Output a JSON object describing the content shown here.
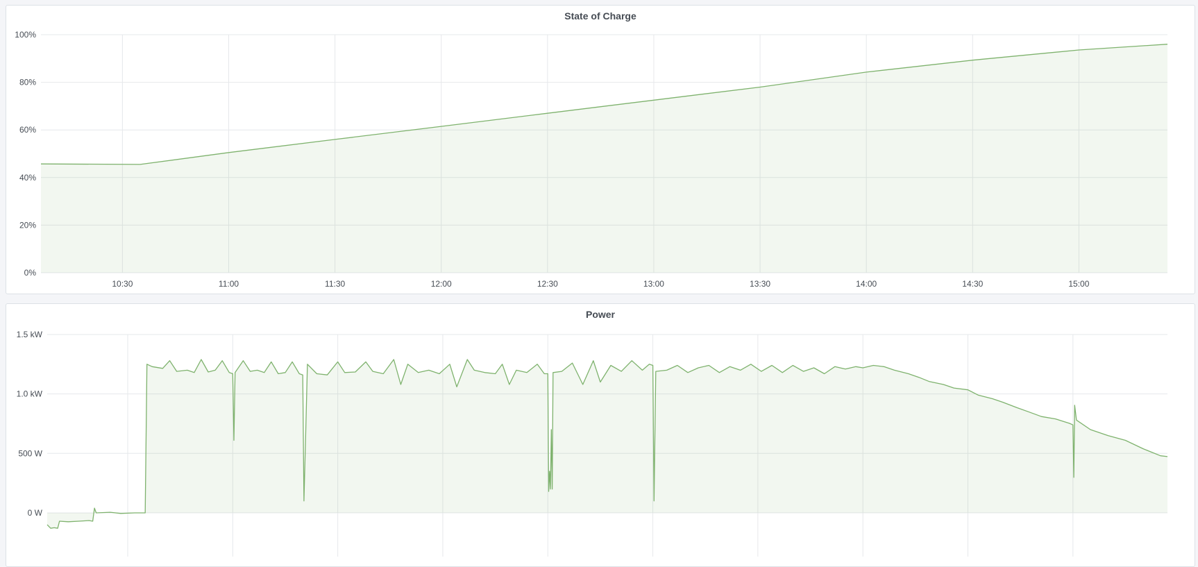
{
  "chart_data": [
    {
      "type": "area",
      "title": "State of Charge",
      "xlabel": "",
      "ylabel": "",
      "xlim": [
        "10:07",
        "15:25"
      ],
      "ylim": [
        0,
        100
      ],
      "y_ticks": [
        0,
        20,
        40,
        60,
        80,
        100
      ],
      "y_tick_labels": [
        "0%",
        "20%",
        "40%",
        "60%",
        "80%",
        "100%"
      ],
      "x_ticks": [
        "10:30",
        "11:00",
        "11:30",
        "12:00",
        "12:30",
        "13:00",
        "13:30",
        "14:00",
        "14:30",
        "15:00"
      ],
      "x_tick_labels": [
        "10:30",
        "11:00",
        "11:30",
        "12:00",
        "12:30",
        "13:00",
        "13:30",
        "14:00",
        "14:30",
        "15:00"
      ],
      "grid": true,
      "legend": "none",
      "color": "#7eb26d",
      "x": [
        "10:07",
        "10:35",
        "11:00",
        "11:30",
        "12:00",
        "12:30",
        "13:00",
        "13:30",
        "14:00",
        "14:30",
        "15:00",
        "15:25"
      ],
      "y": [
        45.7,
        45.5,
        50.5,
        56,
        61.5,
        67,
        72.5,
        78,
        84.3,
        89.3,
        93.6,
        96
      ]
    },
    {
      "type": "area",
      "title": "Power",
      "xlabel": "",
      "ylabel": "",
      "xlim": [
        "10:07",
        "15:27"
      ],
      "ylim": [
        -330,
        1500
      ],
      "y_ticks": [
        0,
        500,
        1000,
        1500
      ],
      "y_tick_labels": [
        "0 W",
        "500 W",
        "1.0 kW",
        "1.5 kW"
      ],
      "x_ticks": [
        "10:30",
        "11:00",
        "11:30",
        "12:00",
        "12:30",
        "13:00",
        "13:30",
        "14:00",
        "14:30",
        "15:00"
      ],
      "grid": true,
      "legend": "none",
      "color": "#7eb26d",
      "x": [
        "10:07",
        "10:08",
        "10:09",
        "10:10",
        "10:10:30",
        "10:13",
        "10:16",
        "10:19",
        "10:20",
        "10:20:30",
        "10:21",
        "10:25",
        "10:28",
        "10:32",
        "10:35",
        "10:35:30",
        "10:37",
        "10:40",
        "10:42",
        "10:44",
        "10:47",
        "10:49",
        "10:51",
        "10:53",
        "10:55",
        "10:57",
        "10:59",
        "11:00",
        "11:00:20",
        "11:00:40",
        "11:03",
        "11:05",
        "11:07",
        "11:09",
        "11:11",
        "11:13",
        "11:15",
        "11:17",
        "11:19",
        "11:20",
        "11:20:20",
        "11:20:50",
        "11:21:20",
        "11:24",
        "11:27",
        "11:30",
        "11:32",
        "11:35",
        "11:38",
        "11:40",
        "11:43",
        "11:46",
        "11:48",
        "11:50",
        "11:53",
        "11:56",
        "11:59",
        "12:02",
        "12:04",
        "12:07",
        "12:09",
        "12:12",
        "12:15",
        "12:17",
        "12:19",
        "12:21",
        "12:24",
        "12:27",
        "12:29",
        "12:30",
        "12:30:15",
        "12:30:30",
        "12:30:45",
        "12:31",
        "12:31:15",
        "12:31:30",
        "12:34",
        "12:37",
        "12:40",
        "12:43",
        "12:45",
        "12:48",
        "12:51",
        "12:54",
        "12:57",
        "12:59",
        "13:00",
        "13:00:20",
        "13:00:50",
        "13:04",
        "13:07",
        "13:10",
        "13:13",
        "13:16",
        "13:19",
        "13:22",
        "13:25",
        "13:28",
        "13:31",
        "13:34",
        "13:37",
        "13:40",
        "13:43",
        "13:46",
        "13:49",
        "13:52",
        "13:55",
        "13:58",
        "14:00",
        "14:03",
        "14:06",
        "14:09",
        "14:13",
        "14:16",
        "14:19",
        "14:23",
        "14:26",
        "14:30",
        "14:33",
        "14:37",
        "14:40",
        "14:44",
        "14:47",
        "14:51",
        "14:55",
        "14:59",
        "15:00",
        "15:00:15",
        "15:00:30",
        "15:01",
        "15:05",
        "15:10",
        "15:15",
        "15:20",
        "15:25",
        "15:27"
      ],
      "y": [
        -100,
        -130,
        -125,
        -130,
        -70,
        -75,
        -70,
        -65,
        -70,
        40,
        0,
        5,
        -5,
        0,
        0,
        1250,
        1230,
        1215,
        1280,
        1190,
        1200,
        1180,
        1290,
        1185,
        1200,
        1280,
        1180,
        1170,
        610,
        1180,
        1280,
        1190,
        1200,
        1180,
        1270,
        1170,
        1180,
        1270,
        1170,
        1160,
        100,
        660,
        1250,
        1170,
        1160,
        1270,
        1180,
        1185,
        1270,
        1190,
        1170,
        1290,
        1080,
        1250,
        1180,
        1200,
        1170,
        1250,
        1060,
        1290,
        1200,
        1180,
        1170,
        1250,
        1080,
        1200,
        1180,
        1250,
        1170,
        1170,
        180,
        350,
        200,
        700,
        200,
        1180,
        1190,
        1260,
        1080,
        1280,
        1100,
        1240,
        1190,
        1280,
        1200,
        1250,
        1240,
        100,
        1190,
        1200,
        1240,
        1180,
        1220,
        1240,
        1180,
        1230,
        1200,
        1250,
        1190,
        1240,
        1180,
        1240,
        1190,
        1220,
        1170,
        1230,
        1210,
        1230,
        1220,
        1240,
        1230,
        1200,
        1170,
        1140,
        1104,
        1080,
        1050,
        1035,
        990,
        960,
        930,
        885,
        853,
        810,
        790,
        753,
        740,
        298,
        905,
        780,
        700,
        650,
        610,
        540,
        480,
        473
      ]
    }
  ]
}
